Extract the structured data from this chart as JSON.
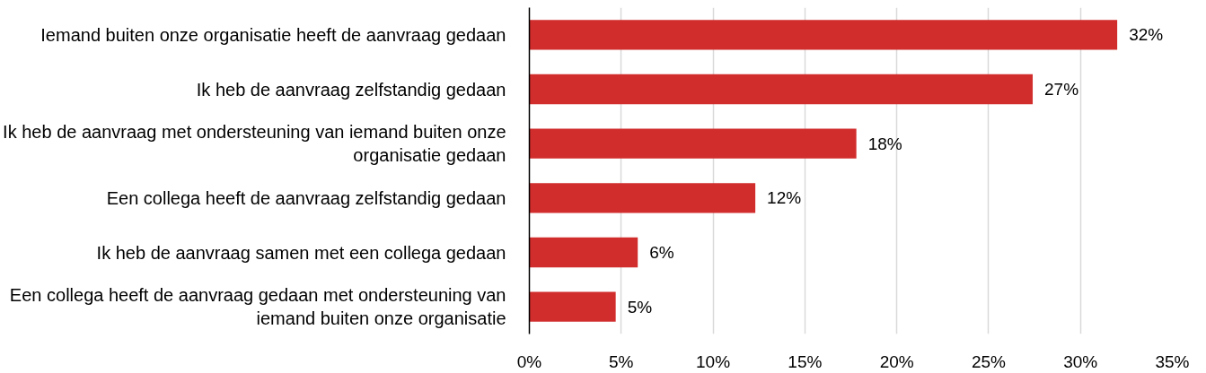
{
  "chart_data": {
    "type": "bar",
    "orientation": "horizontal",
    "categories": [
      "Iemand buiten onze organisatie heeft de aanvraag gedaan",
      "Ik heb de aanvraag zelfstandig gedaan",
      "Ik heb de aanvraag met ondersteuning van iemand buiten onze organisatie gedaan",
      "Een collega heeft de aanvraag zelfstandig gedaan",
      "Ik heb de aanvraag samen met een collega gedaan",
      "Een collega heeft de aanvraag gedaan met ondersteuning van iemand buiten onze organisatie"
    ],
    "values": [
      32,
      27.4,
      17.8,
      12.3,
      5.9,
      4.7
    ],
    "value_labels": [
      "32%",
      "27%",
      "18%",
      "12%",
      "6%",
      "5%"
    ],
    "color": "#d12d2c",
    "xlim": [
      0,
      35
    ],
    "xticks": [
      {
        "value": 0,
        "label": "0%"
      },
      {
        "value": 5,
        "label": "5%"
      },
      {
        "value": 10,
        "label": "10%"
      },
      {
        "value": 15,
        "label": "15%"
      },
      {
        "value": 20,
        "label": "20%"
      },
      {
        "value": 25,
        "label": "25%"
      },
      {
        "value": 30,
        "label": "30%"
      },
      {
        "value": 35,
        "label": "35%"
      }
    ],
    "grid": "x"
  }
}
